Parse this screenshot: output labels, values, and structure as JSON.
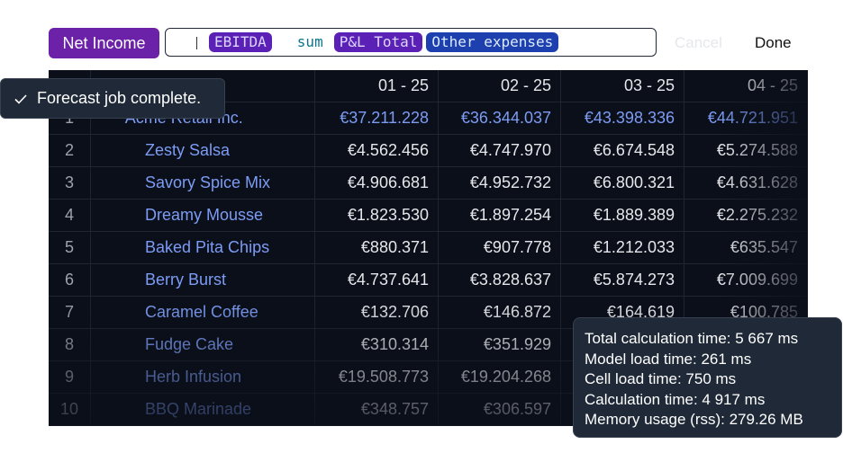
{
  "formula": {
    "label": "Net Income",
    "tokens": [
      {
        "text": "EBITDA",
        "kind": "ref"
      },
      {
        "text": "sum",
        "kind": "fn"
      },
      {
        "text": "P&L Total",
        "kind": "ref"
      },
      {
        "text": "Other expenses",
        "kind": "ref2"
      }
    ]
  },
  "actions": {
    "cancel": "Cancel",
    "done": "Done"
  },
  "toast": "Forecast job complete.",
  "table": {
    "columns": [
      "01 - 25",
      "02 - 25",
      "03 - 25",
      "04 - 25"
    ],
    "rows": [
      {
        "num": "1",
        "name": "Acme Retail Inc.",
        "values": [
          "€37.211.228",
          "€36.344.037",
          "€43.398.336",
          "€44.721.951"
        ]
      },
      {
        "num": "2",
        "name": "Zesty Salsa",
        "values": [
          "€4.562.456",
          "€4.747.970",
          "€6.674.548",
          "€5.274.588"
        ]
      },
      {
        "num": "3",
        "name": "Savory Spice Mix",
        "values": [
          "€4.906.681",
          "€4.952.732",
          "€6.800.321",
          "€4.631.628"
        ]
      },
      {
        "num": "4",
        "name": "Dreamy Mousse",
        "values": [
          "€1.823.530",
          "€1.897.254",
          "€1.889.389",
          "€2.275.232"
        ]
      },
      {
        "num": "5",
        "name": "Baked Pita Chips",
        "values": [
          "€880.371",
          "€907.778",
          "€1.212.033",
          "€635.547"
        ]
      },
      {
        "num": "6",
        "name": "Berry Burst",
        "values": [
          "€4.737.641",
          "€3.828.637",
          "€5.874.273",
          "€7.009.699"
        ]
      },
      {
        "num": "7",
        "name": "Caramel Coffee",
        "values": [
          "€132.706",
          "€146.872",
          "€164.619",
          "€100.785"
        ]
      },
      {
        "num": "8",
        "name": "Fudge Cake",
        "values": [
          "€310.314",
          "€351.929"
        ]
      },
      {
        "num": "9",
        "name": "Herb Infusion",
        "values": [
          "€19.508.773",
          "€19.204.268"
        ]
      },
      {
        "num": "10",
        "name": "BBQ Marinade",
        "values": [
          "€348.757",
          "€306.597"
        ]
      }
    ]
  },
  "tooltip": [
    "Total calculation time: 5 667 ms",
    "Model load time: 261 ms",
    "Cell load time: 750 ms",
    "Calculation time: 4 917 ms",
    "Memory usage (rss): 279.26 MB"
  ]
}
